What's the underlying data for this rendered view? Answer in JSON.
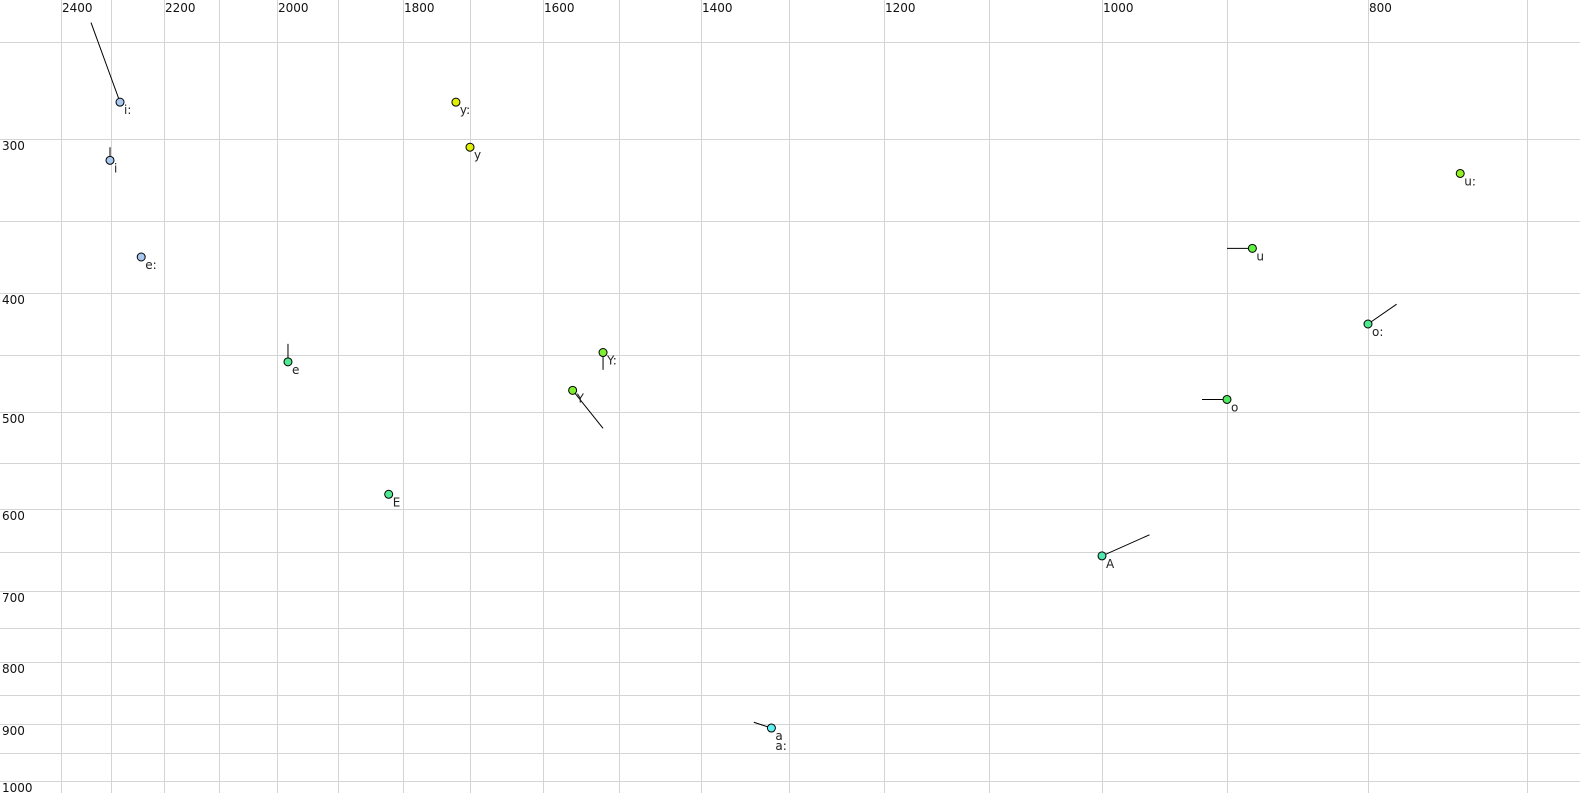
{
  "chart_data": {
    "type": "scatter",
    "title": "",
    "xlabel": "",
    "ylabel": "",
    "x_axis": {
      "quantity": "F2 (Hz)",
      "reversed": true,
      "scale": "auditory (bark-like)",
      "range": [
        2400,
        700
      ],
      "tick_labels": [
        2400,
        2200,
        2000,
        1800,
        1600,
        1400,
        1200,
        1000,
        800
      ],
      "grid_step": 100
    },
    "y_axis": {
      "quantity": "F1 (Hz)",
      "reversed": true,
      "scale": "auditory (bark-like)",
      "range": [
        250,
        1000
      ],
      "tick_labels": [
        300,
        400,
        500,
        600,
        700,
        800,
        900,
        1000
      ],
      "grid_step": 50
    },
    "grid": true,
    "legend": "none",
    "points": [
      {
        "label": "i:",
        "f2": 2283,
        "f1": 281,
        "color": "#a8c8f0",
        "trail": {
          "f2": 2340,
          "f1": 240
        }
      },
      {
        "label": "i",
        "f2": 2302,
        "f1": 313,
        "color": "#a8c8f0",
        "trail": {
          "f2": 2302,
          "f1": 305
        }
      },
      {
        "label": "e:",
        "f2": 2243,
        "f1": 375,
        "color": "#a8c8f0"
      },
      {
        "label": "e",
        "f2": 1982,
        "f1": 456,
        "color": "#50e890",
        "trail": {
          "f2": 1982,
          "f1": 441
        }
      },
      {
        "label": "E",
        "f2": 1822,
        "f1": 584,
        "color": "#50e890"
      },
      {
        "label": "y:",
        "f2": 1721,
        "f1": 281,
        "color": "#e0f000"
      },
      {
        "label": "y",
        "f2": 1700,
        "f1": 305,
        "color": "#e0f000"
      },
      {
        "label": "Y:",
        "f2": 1521,
        "f1": 448,
        "color": "#80ee30",
        "trail": {
          "f2": 1521,
          "f1": 463
        }
      },
      {
        "label": "Y",
        "f2": 1561,
        "f1": 481,
        "color": "#80ee30",
        "trail": {
          "f2": 1521,
          "f1": 516
        }
      },
      {
        "label": "a\na:",
        "f2": 1320,
        "f1": 907,
        "color": "#60f0f0",
        "trail": {
          "f2": 1340,
          "f1": 897
        }
      },
      {
        "label": "A",
        "f2": 1000,
        "f1": 655,
        "color": "#50e8b0",
        "trail": {
          "f2": 962,
          "f1": 630
        }
      },
      {
        "label": "o",
        "f2": 900,
        "f1": 489,
        "color": "#50e860",
        "trail": {
          "f2": 920,
          "f1": 489
        }
      },
      {
        "label": "o:",
        "f2": 800,
        "f1": 425,
        "color": "#50e890",
        "trail": {
          "f2": 782,
          "f1": 409
        }
      },
      {
        "label": "u",
        "f2": 882,
        "f1": 369,
        "color": "#60f040",
        "trail": {
          "f2": 900,
          "f1": 369
        }
      },
      {
        "label": "u:",
        "f2": 742,
        "f1": 321,
        "color": "#90f020"
      }
    ]
  }
}
